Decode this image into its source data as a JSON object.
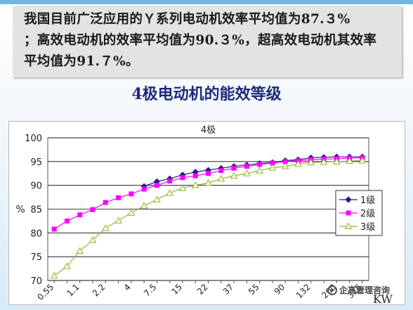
{
  "slide": {
    "text_box": {
      "line1": "我国目前广泛应用的Ｙ系列电动机效率平均值为87.３%",
      "line2": "；高效电动机的效率平均值为90.３%，超高效电动机其效率",
      "line3": "平均值为91.７%。"
    },
    "title": "4极电动机的能效等级",
    "watermark": "企高管理咨询"
  },
  "colors": {
    "series1": "#1f1f8a",
    "series2": "#ff00ff",
    "series3": "#8ab840",
    "grid": "#000000",
    "text_box_bg": "#e3e3e3"
  },
  "chart_data": {
    "type": "line",
    "title": "4极",
    "xlabel": "KW",
    "ylabel": "%",
    "ylim": [
      70,
      100
    ],
    "yticks": [
      70,
      75,
      80,
      85,
      90,
      95,
      100
    ],
    "y_grid": true,
    "legend_position": "right",
    "categories": [
      "0.55",
      "0.75",
      "1.1",
      "1.5",
      "2.2",
      "3",
      "4",
      "5.5",
      "7.5",
      "11",
      "15",
      "18.5",
      "22",
      "30",
      "37",
      "45",
      "55",
      "75",
      "90",
      "110",
      "132",
      "160",
      "200",
      "250",
      "315"
    ],
    "x_tick_labels": [
      "0.55",
      "1.1",
      "2.2",
      "4",
      "7.5",
      "15",
      "22",
      "37",
      "55",
      "90",
      "132",
      "200",
      "315"
    ],
    "series": [
      {
        "name": "1级",
        "marker": "diamond",
        "values": [
          null,
          null,
          null,
          null,
          null,
          null,
          null,
          89.8,
          90.8,
          91.4,
          92.2,
          92.8,
          93.2,
          93.6,
          94.0,
          94.3,
          94.6,
          94.8,
          95.2,
          95.4,
          95.8,
          95.9,
          96.0,
          96.0,
          96.0
        ]
      },
      {
        "name": "2级",
        "marker": "square",
        "values": [
          80.8,
          82.5,
          83.8,
          84.9,
          86.4,
          87.4,
          88.2,
          89.2,
          90.0,
          90.9,
          91.6,
          92.0,
          92.5,
          93.1,
          93.6,
          94.0,
          94.4,
          94.7,
          95.0,
          95.2,
          95.4,
          95.5,
          95.6,
          95.7,
          95.8
        ]
      },
      {
        "name": "3级",
        "marker": "triangle",
        "values": [
          71.0,
          73.0,
          76.2,
          78.5,
          81.0,
          82.6,
          84.2,
          85.7,
          87.0,
          88.4,
          89.4,
          90.0,
          90.5,
          91.4,
          92.0,
          92.5,
          93.1,
          93.7,
          94.0,
          94.5,
          94.8,
          94.9,
          95.0,
          95.1,
          95.2
        ]
      }
    ]
  }
}
